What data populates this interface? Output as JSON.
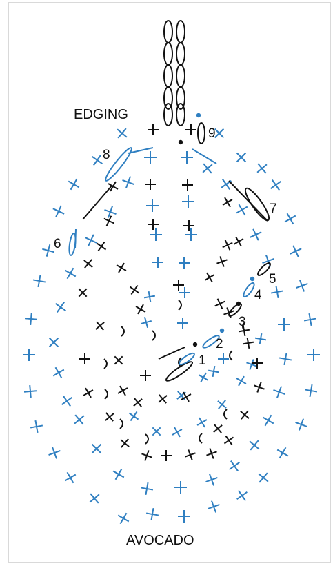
{
  "labels": {
    "edging": "EDGING",
    "avocado": "AVOCADO"
  },
  "steps": [
    "1",
    "2",
    "3",
    "4",
    "5",
    "6",
    "7",
    "8",
    "9"
  ],
  "colors": {
    "black": "#111111",
    "blue": "#2f7fc1"
  }
}
